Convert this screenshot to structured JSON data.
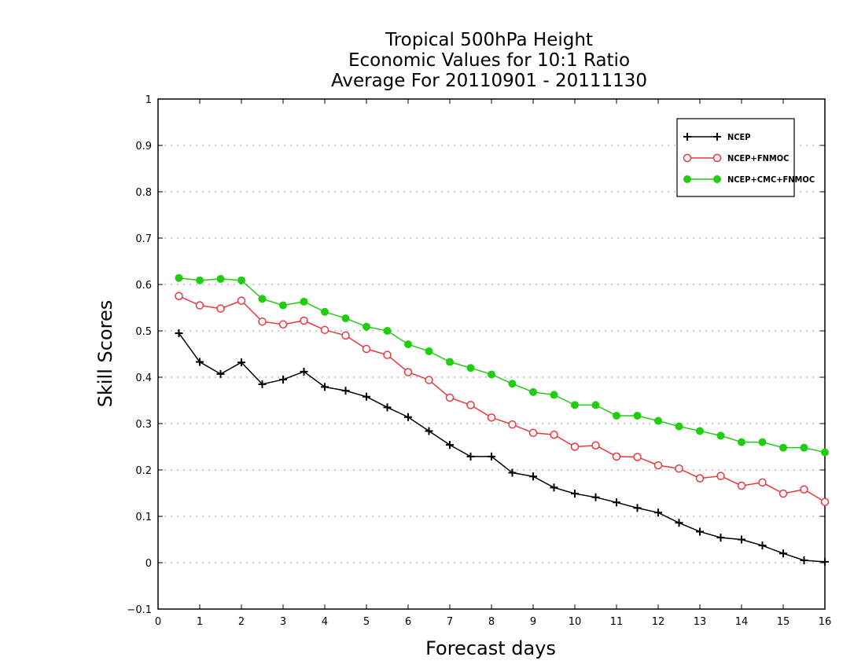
{
  "chart_data": {
    "type": "line",
    "title": [
      "Tropical 500hPa Height",
      "Economic Values for 10:1 Ratio",
      "Average For 20110901 - 20111130"
    ],
    "xlabel": "Forecast days",
    "ylabel": "Skill Scores",
    "xlim": [
      0,
      16
    ],
    "ylim": [
      -0.1,
      1
    ],
    "xticks": [
      "0",
      "1",
      "2",
      "3",
      "4",
      "5",
      "6",
      "7",
      "8",
      "9",
      "10",
      "11",
      "12",
      "13",
      "14",
      "15",
      "16"
    ],
    "yticks": [
      "−0.1",
      "0",
      "0.1",
      "0.2",
      "0.3",
      "0.4",
      "0.5",
      "0.6",
      "0.7",
      "0.8",
      "0.9",
      "1"
    ],
    "grid": true,
    "legend_position": "top-right",
    "x": [
      0.5,
      1,
      1.5,
      2,
      2.5,
      3,
      3.5,
      4,
      4.5,
      5,
      5.5,
      6,
      6.5,
      7,
      7.5,
      8,
      8.5,
      9,
      9.5,
      10,
      10.5,
      11,
      11.5,
      12,
      12.5,
      13,
      13.5,
      14,
      14.5,
      15,
      15.5,
      16
    ],
    "series": [
      {
        "name": "NCEP",
        "color": "#000000",
        "marker": "plus",
        "values": [
          0.495,
          0.433,
          0.407,
          0.432,
          0.385,
          0.395,
          0.412,
          0.379,
          0.371,
          0.358,
          0.335,
          0.314,
          0.284,
          0.254,
          0.229,
          0.229,
          0.194,
          0.186,
          0.162,
          0.149,
          0.141,
          0.13,
          0.118,
          0.108,
          0.086,
          0.067,
          0.054,
          0.05,
          0.037,
          0.02,
          0.005,
          0.002
        ]
      },
      {
        "name": "NCEP+FNMOC",
        "color": "#e8383d",
        "marker": "open-circle",
        "values": [
          0.575,
          0.555,
          0.548,
          0.565,
          0.52,
          0.514,
          0.522,
          0.502,
          0.49,
          0.461,
          0.448,
          0.411,
          0.394,
          0.356,
          0.34,
          0.313,
          0.298,
          0.28,
          0.276,
          0.25,
          0.253,
          0.229,
          0.228,
          0.21,
          0.203,
          0.182,
          0.187,
          0.166,
          0.173,
          0.149,
          0.158,
          0.131
        ]
      },
      {
        "name": "NCEP+CMC+FNMOC",
        "color": "#22cc11",
        "marker": "filled-circle",
        "values": [
          0.614,
          0.609,
          0.612,
          0.609,
          0.569,
          0.555,
          0.563,
          0.541,
          0.527,
          0.509,
          0.5,
          0.471,
          0.456,
          0.433,
          0.42,
          0.406,
          0.386,
          0.368,
          0.362,
          0.34,
          0.34,
          0.317,
          0.317,
          0.306,
          0.294,
          0.284,
          0.274,
          0.26,
          0.26,
          0.248,
          0.248,
          0.238
        ]
      }
    ]
  }
}
